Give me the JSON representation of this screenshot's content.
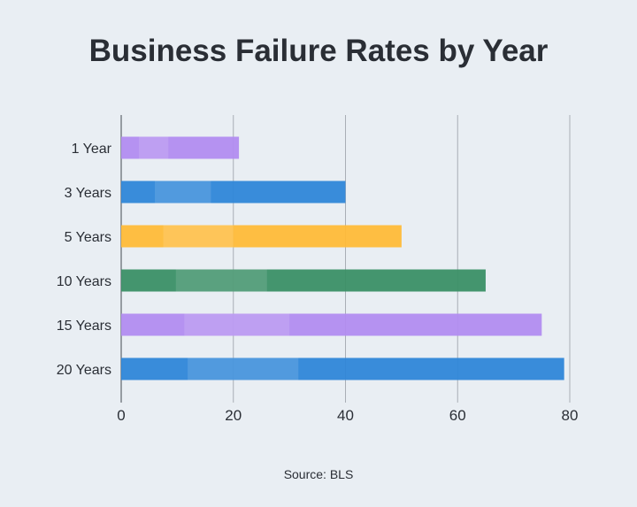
{
  "chart_data": {
    "type": "bar",
    "orientation": "horizontal",
    "title": "Business Failure Rates by Year",
    "categories": [
      "1 Year",
      "3 Years",
      "5 Years",
      "10 Years",
      "15 Years",
      "20 Years"
    ],
    "values": [
      21,
      40,
      50,
      65,
      75,
      79
    ],
    "colors": [
      "#b28cf0",
      "#2f86d8",
      "#ffbb38",
      "#3b8f66",
      "#b28cf0",
      "#2f86d8"
    ],
    "xlim": [
      0,
      80
    ],
    "xticks": [
      0,
      20,
      40,
      60,
      80
    ],
    "xlabel": "",
    "ylabel": "",
    "grid": "vertical",
    "source": "Source: BLS"
  }
}
